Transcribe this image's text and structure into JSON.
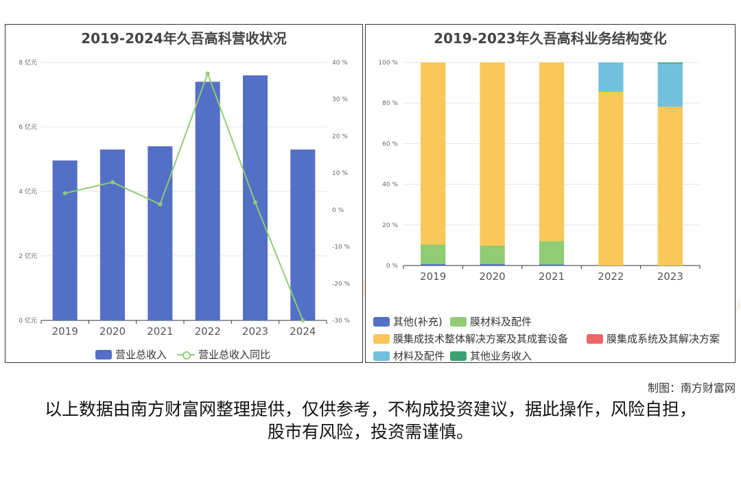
{
  "watermark": {
    "cn": "南方财富网",
    "en": "Southmoney.com"
  },
  "credit": "制图：南方财富网",
  "disclaimer": "以上数据由南方财富网整理提供，仅供参考，不构成投资建议，据此操作，风险自担，股市有风险，投资需谨慎。",
  "chart_data": [
    {
      "type": "bar",
      "title": "2019-2024年久吾高科营收状况",
      "categories": [
        "2019",
        "2020",
        "2021",
        "2022",
        "2023",
        "2024"
      ],
      "series": [
        {
          "name": "营业总收入",
          "type": "bar",
          "axis": "left",
          "color": "#5470c6",
          "values": [
            4.96,
            5.3,
            5.4,
            7.4,
            7.6,
            5.3
          ]
        },
        {
          "name": "营业总收入同比",
          "type": "line",
          "axis": "right",
          "color": "#91cc75",
          "values": [
            4.5,
            7.5,
            1.5,
            37.0,
            2.0,
            -30.0
          ]
        }
      ],
      "y_left": {
        "min": 0,
        "max": 8,
        "ticks": [
          "0 亿元",
          "2 亿元",
          "4 亿元",
          "6 亿元",
          "8 亿元"
        ]
      },
      "y_right": {
        "min": -30,
        "max": 40,
        "ticks": [
          "-30 %",
          "-20 %",
          "-10 %",
          "0 %",
          "10 %",
          "20 %",
          "30 %",
          "40 %"
        ]
      },
      "legend_position": "bottom"
    },
    {
      "type": "bar",
      "stacked": true,
      "title": "2019-2023年久吾高科业务结构变化",
      "categories": [
        "2019",
        "2020",
        "2021",
        "2022",
        "2023"
      ],
      "series": [
        {
          "name": "其他(补充)",
          "color": "#5470c6",
          "values": [
            0.8,
            0.8,
            0.5,
            0,
            0
          ]
        },
        {
          "name": "膜材料及配件",
          "color": "#91cc75",
          "values": [
            9.5,
            9.0,
            11.5,
            0,
            0
          ]
        },
        {
          "name": "膜集成技术整体解决方案及其成套设备",
          "color": "#fac858",
          "values": [
            89.7,
            90.2,
            88.0,
            85.5,
            78.2
          ]
        },
        {
          "name": "膜集成系统及其解决方案",
          "color": "#ee6666",
          "values": [
            0,
            0,
            0,
            0,
            0
          ]
        },
        {
          "name": "材料及配件",
          "color": "#73c0de",
          "values": [
            0,
            0,
            0,
            14.5,
            21.3
          ]
        },
        {
          "name": "其他业务收入",
          "color": "#3ba272",
          "values": [
            0,
            0,
            0,
            0,
            0.5
          ]
        }
      ],
      "y": {
        "min": 0,
        "max": 100,
        "ticks": [
          "0 %",
          "20 %",
          "40 %",
          "60 %",
          "80 %",
          "100 %"
        ]
      },
      "legend_position": "bottom"
    }
  ]
}
